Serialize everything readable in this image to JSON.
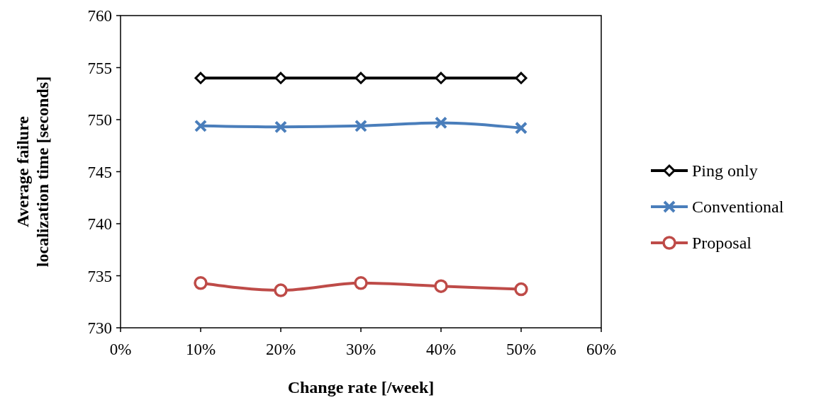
{
  "chart_data": {
    "type": "line",
    "xlabel": "Change rate [/week]",
    "ylabel": "Average failure localization time [seconds]",
    "x": [
      10,
      20,
      30,
      40,
      50
    ],
    "xlim": [
      0,
      60
    ],
    "xticks": [
      {
        "value": 0,
        "label": "0%"
      },
      {
        "value": 10,
        "label": "10%"
      },
      {
        "value": 20,
        "label": "20%"
      },
      {
        "value": 30,
        "label": "30%"
      },
      {
        "value": 40,
        "label": "40%"
      },
      {
        "value": 50,
        "label": "50%"
      },
      {
        "value": 60,
        "label": "60%"
      }
    ],
    "ylim": [
      730,
      760
    ],
    "yticks": [
      730,
      735,
      740,
      745,
      750,
      755,
      760
    ],
    "legend": "right",
    "grid": false,
    "line_style": "solid",
    "series": [
      {
        "name": "Ping only",
        "color": "#000000",
        "marker": "diamond",
        "values": [
          754,
          754,
          754,
          754,
          754
        ]
      },
      {
        "name": "Conventional",
        "color": "#4a7ebb",
        "marker": "cross",
        "values": [
          749.4,
          749.3,
          749.4,
          749.7,
          749.2
        ]
      },
      {
        "name": "Proposal",
        "color": "#be4b48",
        "marker": "circle",
        "values": [
          734.3,
          733.6,
          734.3,
          734.0,
          733.7
        ]
      }
    ]
  }
}
